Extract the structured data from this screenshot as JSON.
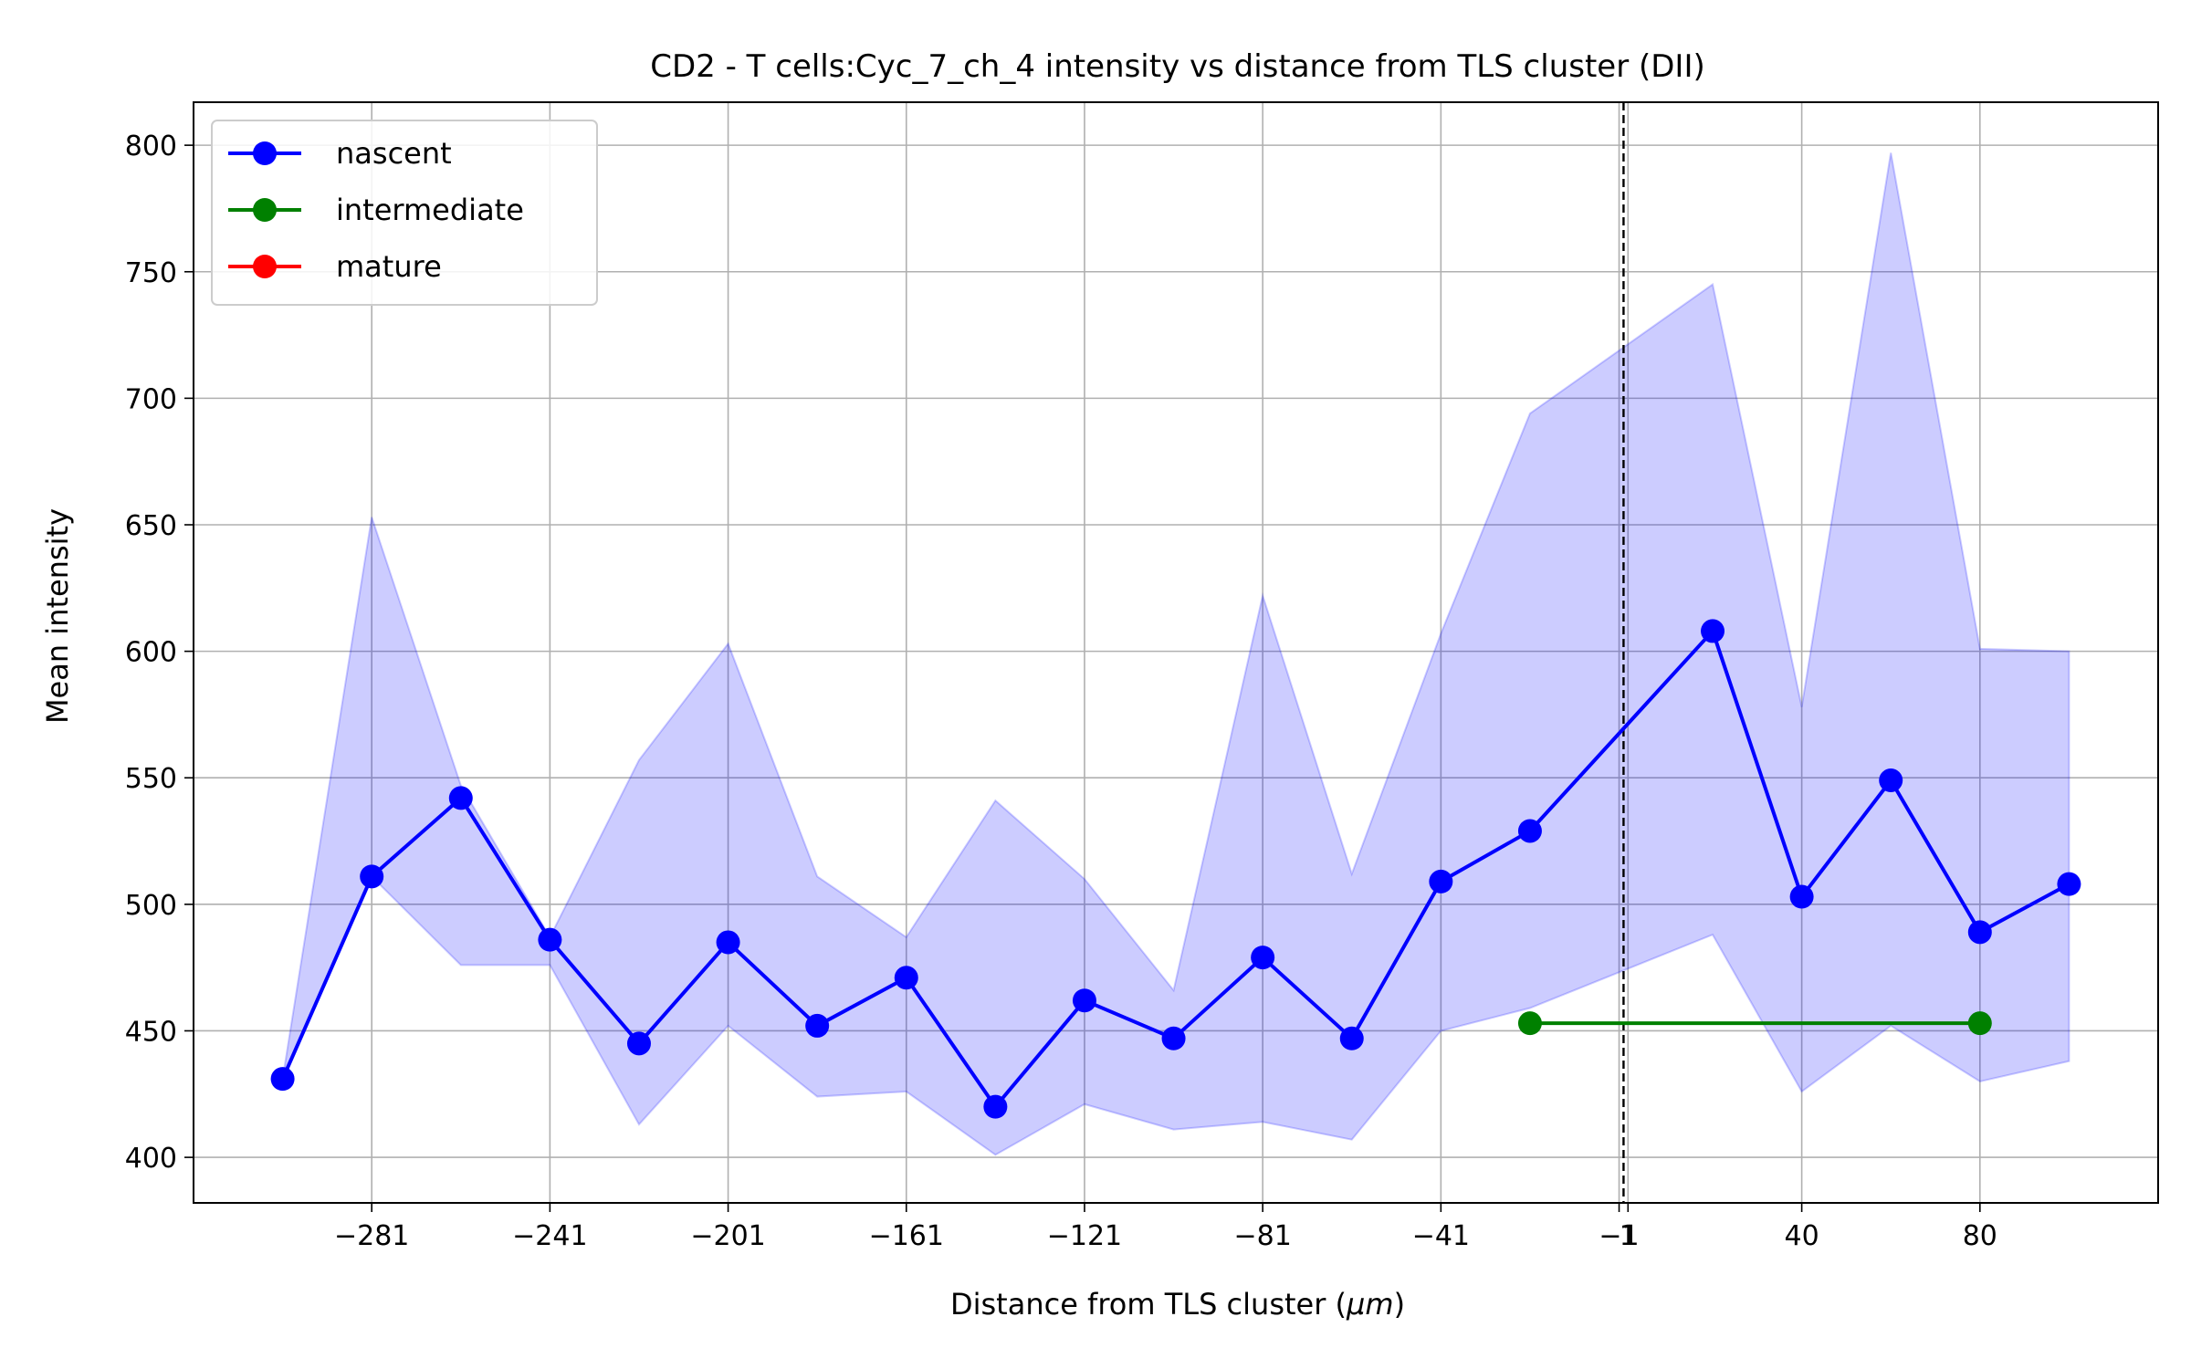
{
  "chart_data": {
    "type": "line",
    "title": "CD2 - T cells:Cyc_7_ch_4 intensity vs distance from TLS cluster (DII)",
    "xlabel": "Distance from TLS cluster (",
    "xlabel_unit": "μm",
    "xlabel_end": ")",
    "ylabel": "Mean intensity",
    "xlim": [
      -321,
      120
    ],
    "ylim": [
      382,
      817
    ],
    "grid": true,
    "legend_position": "upper-left",
    "x_ticks": [
      -281,
      -241,
      -201,
      -161,
      -121,
      -81,
      -41,
      -1,
      1,
      40,
      80
    ],
    "x_tick_labels": [
      "−281",
      "−241",
      "−201",
      "−161",
      "−121",
      "−81",
      "−41",
      "−1",
      "1",
      "40",
      "80"
    ],
    "y_ticks": [
      400,
      450,
      500,
      550,
      600,
      650,
      700,
      750,
      800
    ],
    "y_tick_labels": [
      "400",
      "450",
      "500",
      "550",
      "600",
      "650",
      "700",
      "750",
      "800"
    ],
    "vline_x": 0,
    "series": [
      {
        "name": "nascent",
        "color": "#0000ff",
        "x": [
          -301,
          -281,
          -261,
          -241,
          -221,
          -201,
          -181,
          -161,
          -141,
          -121,
          -101,
          -81,
          -61,
          -41,
          -21,
          20,
          40,
          60,
          80,
          100
        ],
        "y": [
          431,
          511,
          542,
          486,
          445,
          485,
          452,
          471,
          420,
          462,
          447,
          479,
          447,
          509,
          529,
          608,
          503,
          549,
          489,
          508
        ],
        "band_lower": [
          431,
          511,
          476,
          476,
          413,
          452,
          424,
          426,
          401,
          421,
          411,
          414,
          407,
          450,
          459,
          488,
          426,
          452,
          430,
          438
        ],
        "band_upper": [
          431,
          653,
          547,
          487,
          557,
          603,
          511,
          487,
          541,
          510,
          466,
          622,
          512,
          607,
          694,
          745,
          578,
          797,
          601,
          600
        ]
      },
      {
        "name": "intermediate",
        "color": "#008000",
        "x": [
          -21,
          80
        ],
        "y": [
          453,
          453
        ]
      },
      {
        "name": "mature",
        "color": "#ff0000",
        "x": [],
        "y": []
      }
    ]
  }
}
